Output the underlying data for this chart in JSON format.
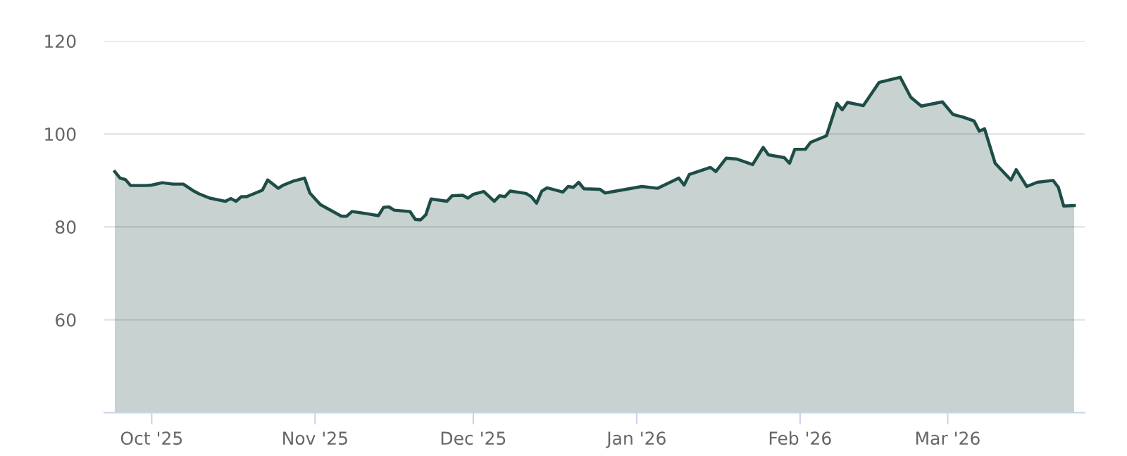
{
  "chart_data": {
    "type": "area",
    "x": [
      "2025-09-24",
      "2025-09-25",
      "2025-09-26",
      "2025-09-27",
      "2025-09-30",
      "2025-10-01",
      "2025-10-03",
      "2025-10-05",
      "2025-10-07",
      "2025-10-09",
      "2025-10-10",
      "2025-10-12",
      "2025-10-15",
      "2025-10-16",
      "2025-10-17",
      "2025-10-18",
      "2025-10-19",
      "2025-10-22",
      "2025-10-23",
      "2025-10-25",
      "2025-10-26",
      "2025-10-28",
      "2025-10-30",
      "2025-10-31",
      "2025-11-02",
      "2025-11-06",
      "2025-11-07",
      "2025-11-08",
      "2025-11-11",
      "2025-11-13",
      "2025-11-14",
      "2025-11-15",
      "2025-11-16",
      "2025-11-19",
      "2025-11-20",
      "2025-11-21",
      "2025-11-22",
      "2025-11-23",
      "2025-11-26",
      "2025-11-27",
      "2025-11-29",
      "2025-11-30",
      "2025-12-01",
      "2025-12-03",
      "2025-12-05",
      "2025-12-06",
      "2025-12-07",
      "2025-12-08",
      "2025-12-11",
      "2025-12-12",
      "2025-12-13",
      "2025-12-14",
      "2025-12-15",
      "2025-12-18",
      "2025-12-19",
      "2025-12-20",
      "2025-12-21",
      "2025-12-22",
      "2025-12-25",
      "2025-12-26",
      "2026-01-02",
      "2026-01-05",
      "2026-01-09",
      "2026-01-10",
      "2026-01-11",
      "2026-01-15",
      "2026-01-16",
      "2026-01-18",
      "2026-01-20",
      "2026-01-23",
      "2026-01-25",
      "2026-01-26",
      "2026-01-29",
      "2026-01-30",
      "2026-01-31",
      "2026-02-02",
      "2026-02-03",
      "2026-02-06",
      "2026-02-08",
      "2026-02-09",
      "2026-02-10",
      "2026-02-13",
      "2026-02-16",
      "2026-02-20",
      "2026-02-22",
      "2026-02-24",
      "2026-02-28",
      "2026-03-02",
      "2026-03-04",
      "2026-03-06",
      "2026-03-07",
      "2026-03-08",
      "2026-03-10",
      "2026-03-13",
      "2026-03-14",
      "2026-03-16",
      "2026-03-18",
      "2026-03-21",
      "2026-03-22",
      "2026-03-23",
      "2026-03-25"
    ],
    "series": [
      {
        "color": "#1e4d47",
        "values": [
          91.9,
          90.5,
          90.2,
          88.9,
          88.9,
          89.0,
          89.5,
          89.2,
          89.2,
          87.7,
          87.1,
          86.2,
          85.5,
          86.1,
          85.5,
          86.5,
          86.5,
          87.9,
          90.1,
          88.3,
          89.0,
          89.9,
          90.5,
          87.3,
          84.8,
          82.3,
          82.3,
          83.3,
          82.8,
          82.4,
          84.2,
          84.3,
          83.6,
          83.3,
          81.6,
          81.5,
          82.6,
          86.0,
          85.5,
          86.7,
          86.8,
          86.2,
          87.0,
          87.6,
          85.5,
          86.7,
          86.5,
          87.7,
          87.2,
          86.5,
          85.1,
          87.7,
          88.4,
          87.5,
          88.7,
          88.5,
          89.6,
          88.2,
          88.1,
          87.3,
          88.7,
          88.3,
          90.5,
          89.0,
          91.3,
          92.8,
          91.9,
          94.8,
          94.6,
          93.4,
          97.1,
          95.5,
          94.9,
          93.7,
          96.7,
          96.7,
          98.2,
          99.6,
          106.6,
          105.2,
          106.8,
          106.1,
          111.1,
          112.2,
          107.9,
          106.0,
          106.9,
          104.2,
          103.6,
          102.8,
          100.6,
          101.1,
          93.7,
          90.1,
          92.3,
          88.7,
          89.6,
          90.0,
          88.5,
          84.5,
          84.6
        ]
      }
    ],
    "xlim": [
      "2025-09-22",
      "2026-03-27"
    ],
    "xticks": [
      {
        "value": "2025-10-01",
        "label": "Oct '25"
      },
      {
        "value": "2025-11-01",
        "label": "Nov '25"
      },
      {
        "value": "2025-12-01",
        "label": "Dec '25"
      },
      {
        "value": "2026-01-01",
        "label": "Jan '26"
      },
      {
        "value": "2026-02-01",
        "label": "Feb '26"
      },
      {
        "value": "2026-03-01",
        "label": "Mar '26"
      }
    ],
    "ylim": [
      40,
      120
    ],
    "yticks": [
      60,
      80,
      100,
      120
    ],
    "grid": "y",
    "legend": false,
    "marker": "none",
    "line_style": "solid"
  }
}
